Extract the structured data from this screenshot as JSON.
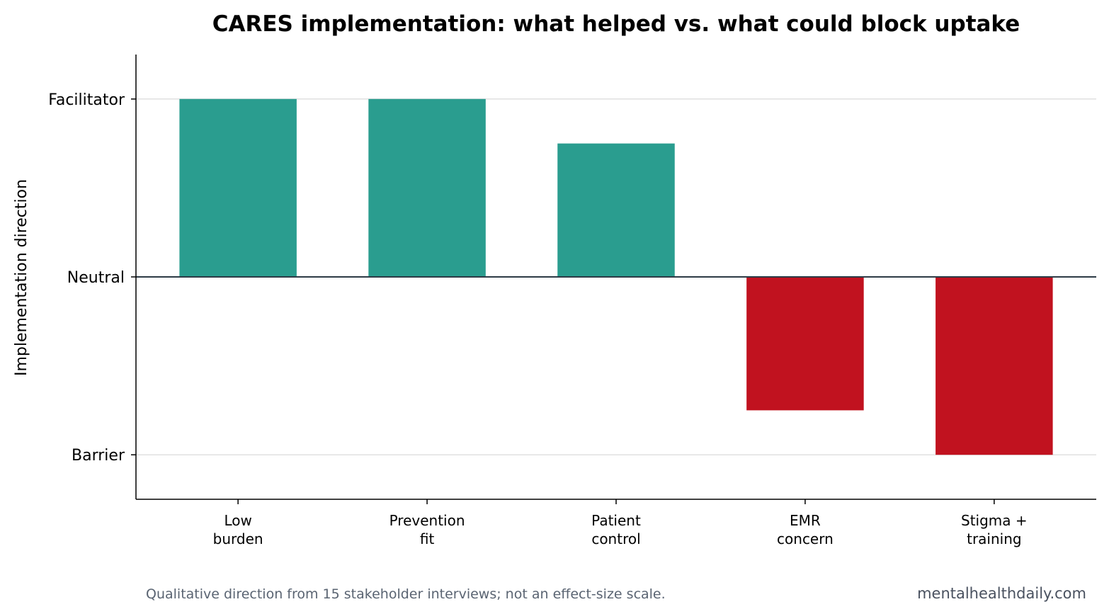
{
  "chart_data": {
    "type": "bar",
    "title": "CARES implementation: what helped vs. what could block uptake",
    "y_label": "Implementation direction",
    "categories": [
      "Low\nburden",
      "Prevention\nfit",
      "Patient\ncontrol",
      "EMR\nconcern",
      "Stigma +\ntraining"
    ],
    "values": [
      1,
      1,
      0.75,
      -0.75,
      -1
    ],
    "colors": [
      "#2a9d8f",
      "#2a9d8f",
      "#2a9d8f",
      "#c1121f",
      "#c1121f"
    ],
    "ylim": [
      -1.25,
      1.25
    ],
    "yticks": [
      {
        "value": -1,
        "label": "Barrier"
      },
      {
        "value": 0,
        "label": "Neutral"
      },
      {
        "value": 1,
        "label": "Facilitator"
      }
    ],
    "grid": true,
    "note": "Qualitative direction from 15 stakeholder interviews; not an effect-size scale.",
    "source": "mentalhealthdaily.com"
  }
}
